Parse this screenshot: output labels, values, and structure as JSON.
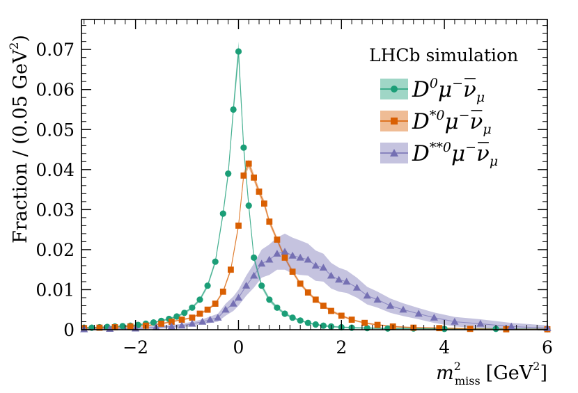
{
  "chart_data": {
    "type": "scatter",
    "title": "",
    "annotation": "LHCb simulation",
    "xlabel": {
      "main": "m",
      "superscript": "2",
      "subscript": "miss",
      "unit": "[GeV",
      "unit_superscript": "2",
      "unit_close": "]"
    },
    "ylabel": "Fraction / (0.05 GeV",
    "ylabel_superscript": "2",
    "ylabel_close": ")",
    "xlim": [
      -3.05,
      6.0
    ],
    "ylim": [
      0,
      0.0775
    ],
    "xticks": [
      -2,
      0,
      2,
      4,
      6
    ],
    "xtick_labels": [
      "−2",
      "0",
      "2",
      "4",
      "6"
    ],
    "yticks": [
      0,
      0.01,
      0.02,
      0.03,
      0.04,
      0.05,
      0.06,
      0.07
    ],
    "ytick_labels": [
      "0",
      "0.01",
      "0.02",
      "0.03",
      "0.04",
      "0.05",
      "0.06",
      "0.07"
    ],
    "legend_position": "top-right",
    "series": [
      {
        "name": "D0 mu nu",
        "legend_label": {
          "D": "D",
          "sup": "0",
          "mu": "μ",
          "minus": "−",
          "nu": "ν",
          "nusub": "μ"
        },
        "color": "#1b9e77",
        "band_color": "#1b9e77",
        "marker": "circle",
        "x": [
          -3.0,
          -2.85,
          -2.7,
          -2.55,
          -2.4,
          -2.25,
          -2.1,
          -1.95,
          -1.8,
          -1.65,
          -1.5,
          -1.35,
          -1.2,
          -1.05,
          -0.9,
          -0.75,
          -0.6,
          -0.45,
          -0.3,
          -0.2,
          -0.1,
          0.0,
          0.1,
          0.2,
          0.3,
          0.45,
          0.6,
          0.75,
          0.9,
          1.05,
          1.2,
          1.35,
          1.5,
          1.65,
          1.8,
          2.0,
          2.2,
          2.5,
          2.9,
          3.4,
          4.0,
          5.0,
          6.0
        ],
        "y": [
          0.0005,
          0.0005,
          0.0006,
          0.0007,
          0.0008,
          0.0009,
          0.001,
          0.0012,
          0.0015,
          0.0018,
          0.0022,
          0.0027,
          0.0033,
          0.0042,
          0.0055,
          0.0075,
          0.011,
          0.017,
          0.029,
          0.039,
          0.055,
          0.0695,
          0.0455,
          0.031,
          0.018,
          0.011,
          0.0075,
          0.0055,
          0.004,
          0.003,
          0.0023,
          0.0017,
          0.0013,
          0.001,
          0.0008,
          0.0006,
          0.0005,
          0.0004,
          0.0003,
          0.0003,
          0.0002,
          0.0002,
          0.0001
        ],
        "band_halfwidth": [
          0.0002,
          0.0002,
          0.0002,
          0.0002,
          0.0002,
          0.0002,
          0.0002,
          0.0002,
          0.0002,
          0.0002,
          0.0002,
          0.0002,
          0.0003,
          0.0003,
          0.0003,
          0.0004,
          0.0005,
          0.0006,
          0.0008,
          0.001,
          0.0015,
          0.0025,
          0.0015,
          0.001,
          0.0008,
          0.0006,
          0.0005,
          0.0004,
          0.0003,
          0.0003,
          0.0002,
          0.0002,
          0.0002,
          0.0002,
          0.0002,
          0.0002,
          0.0002,
          0.0002,
          0.0002,
          0.0002,
          0.0002,
          0.0002,
          0.0002
        ]
      },
      {
        "name": "D*0 mu nu",
        "legend_label": {
          "D": "D",
          "sup": "*0",
          "mu": "μ",
          "minus": "−",
          "nu": "ν",
          "nusub": "μ"
        },
        "color": "#d95f02",
        "band_color": "#d95f02",
        "marker": "square",
        "x": [
          -3.0,
          -2.7,
          -2.4,
          -2.1,
          -1.8,
          -1.5,
          -1.3,
          -1.1,
          -0.9,
          -0.75,
          -0.6,
          -0.45,
          -0.3,
          -0.15,
          0.0,
          0.1,
          0.2,
          0.3,
          0.4,
          0.5,
          0.6,
          0.75,
          0.9,
          1.05,
          1.2,
          1.35,
          1.5,
          1.65,
          1.8,
          2.0,
          2.2,
          2.45,
          2.7,
          3.0,
          3.4,
          3.9,
          4.5,
          5.2,
          6.0
        ],
        "y": [
          0.0004,
          0.0005,
          0.0006,
          0.0008,
          0.001,
          0.0015,
          0.002,
          0.0025,
          0.003,
          0.004,
          0.005,
          0.0065,
          0.0095,
          0.015,
          0.026,
          0.0385,
          0.0415,
          0.038,
          0.0345,
          0.0315,
          0.027,
          0.0225,
          0.018,
          0.0145,
          0.0115,
          0.0093,
          0.0075,
          0.006,
          0.0047,
          0.0035,
          0.0025,
          0.0017,
          0.0012,
          0.0008,
          0.0005,
          0.0004,
          0.0002,
          0.0001,
          0.0001
        ],
        "band_halfwidth": [
          0.0002,
          0.0002,
          0.0002,
          0.0002,
          0.0002,
          0.0002,
          0.0002,
          0.0002,
          0.0002,
          0.0002,
          0.0003,
          0.0003,
          0.0004,
          0.0005,
          0.0007,
          0.0009,
          0.001,
          0.0009,
          0.0008,
          0.0008,
          0.0007,
          0.0006,
          0.0005,
          0.0005,
          0.0004,
          0.0004,
          0.0003,
          0.0003,
          0.0003,
          0.0003,
          0.0002,
          0.0002,
          0.0002,
          0.0002,
          0.0002,
          0.0002,
          0.0002,
          0.0002,
          0.0002
        ]
      },
      {
        "name": "D**0 mu nu",
        "legend_label": {
          "D": "D",
          "sup": "**0",
          "mu": "μ",
          "minus": "−",
          "nu": "ν",
          "nusub": "μ"
        },
        "color": "#7570b3",
        "band_color": "#7570b3",
        "marker": "triangle",
        "x": [
          -3.0,
          -2.5,
          -2.0,
          -1.6,
          -1.3,
          -1.1,
          -0.9,
          -0.7,
          -0.55,
          -0.4,
          -0.25,
          -0.1,
          0.0,
          0.15,
          0.3,
          0.45,
          0.6,
          0.75,
          0.9,
          1.05,
          1.2,
          1.35,
          1.5,
          1.65,
          1.8,
          1.95,
          2.1,
          2.3,
          2.5,
          2.7,
          2.95,
          3.2,
          3.5,
          3.8,
          4.2,
          4.7,
          5.3,
          6.0
        ],
        "y": [
          0.0001,
          0.0002,
          0.0003,
          0.0006,
          0.0008,
          0.001,
          0.0015,
          0.002,
          0.0025,
          0.003,
          0.005,
          0.0065,
          0.008,
          0.011,
          0.0135,
          0.0165,
          0.0175,
          0.019,
          0.0195,
          0.0185,
          0.018,
          0.0175,
          0.016,
          0.0155,
          0.0135,
          0.0125,
          0.012,
          0.0105,
          0.0085,
          0.0075,
          0.006,
          0.005,
          0.004,
          0.003,
          0.002,
          0.0015,
          0.0008,
          0.0004
        ],
        "band_halfwidth": [
          0.0003,
          0.0003,
          0.0003,
          0.0004,
          0.0004,
          0.0005,
          0.0005,
          0.0006,
          0.0008,
          0.001,
          0.0015,
          0.0018,
          0.002,
          0.0025,
          0.003,
          0.0035,
          0.0038,
          0.004,
          0.0045,
          0.0045,
          0.0043,
          0.004,
          0.0038,
          0.0035,
          0.0032,
          0.003,
          0.0028,
          0.0025,
          0.0022,
          0.002,
          0.0018,
          0.0016,
          0.0014,
          0.0013,
          0.0012,
          0.0011,
          0.0009,
          0.0007
        ]
      }
    ]
  }
}
